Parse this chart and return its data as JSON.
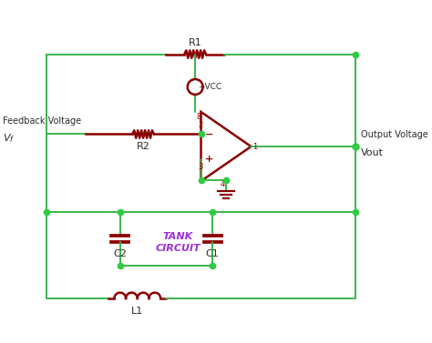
{
  "wire_color": "#3cb44b",
  "component_color": "#8b0000",
  "purple_color": "#9b30d9",
  "bg_color": "#ffffff",
  "text_color": "#2a2a2a",
  "dot_color": "#2ecc40",
  "fig_width": 4.74,
  "fig_height": 3.77,
  "dpi": 100,
  "xlim": [
    0,
    10
  ],
  "ylim": [
    0,
    7.9
  ]
}
